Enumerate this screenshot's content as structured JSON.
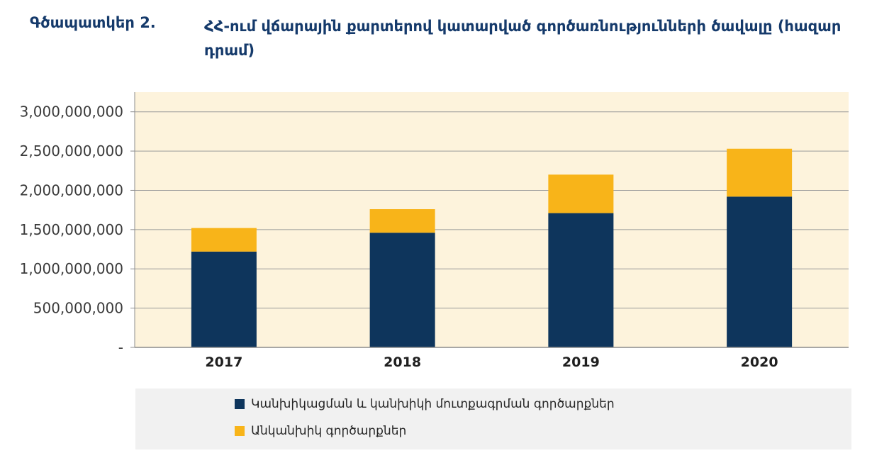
{
  "figure": {
    "label": "Գծապատկեր 2.",
    "title": "ՀՀ-ում վճարային քարտերով կատարված գործառնությունների  ծավալը (հազար դրամ)"
  },
  "colors": {
    "series1": "#0e355c",
    "series2": "#f8b419",
    "plot_bg": "#fdf3dc",
    "grid": "#9a9a9a",
    "legend_bg": "#f1f1f1"
  },
  "chart_data": {
    "type": "bar",
    "stacked": true,
    "categories": [
      "2017",
      "2018",
      "2019",
      "2020"
    ],
    "series": [
      {
        "name": "Կանխիկացման և կանխիկի մուտքագրման գործարքներ",
        "values": [
          1220000000,
          1460000000,
          1710000000,
          1920000000
        ]
      },
      {
        "name": "Անկանխիկ գործարքներ",
        "values": [
          300000000,
          300000000,
          490000000,
          610000000
        ]
      }
    ],
    "ylim": [
      0,
      3250000000
    ],
    "yticks": [
      0,
      500000000,
      1000000000,
      1500000000,
      2000000000,
      2500000000,
      3000000000
    ],
    "ytick_labels": [
      "-",
      "500,000,000",
      "1,000,000,000",
      "1,500,000,000",
      "2,000,000,000",
      "2,500,000,000",
      "3,000,000,000"
    ],
    "grid": true,
    "legend_position": "bottom"
  }
}
